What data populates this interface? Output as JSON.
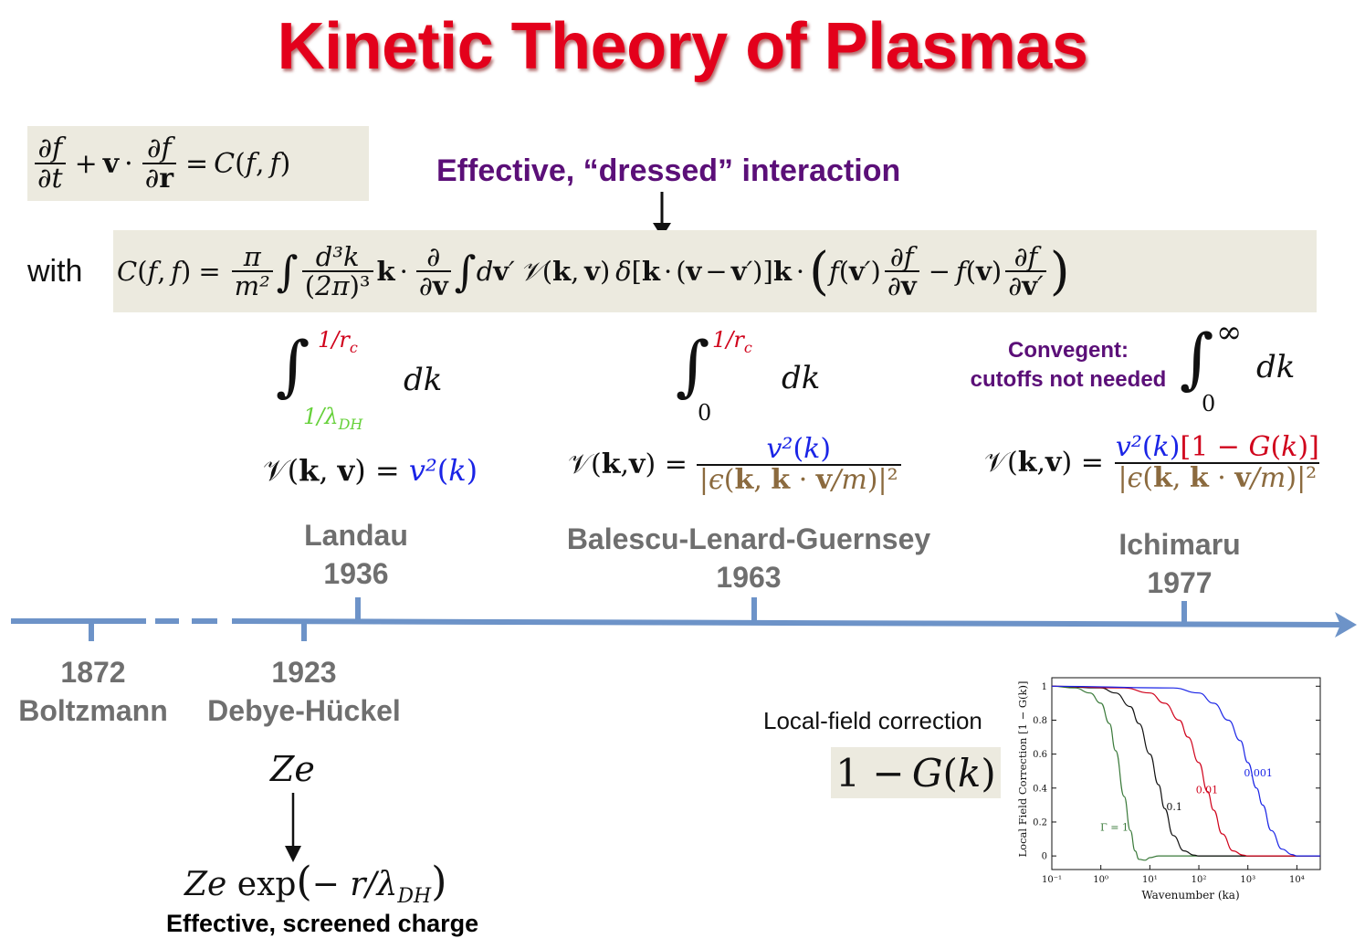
{
  "title": "Kinetic Theory of Plasmas",
  "annotations": {
    "dressed_interaction": "Effective, “dressed” interaction",
    "with_label": "with",
    "convergent_line1": "Convegent:",
    "convergent_line2": "cutoffs not needed",
    "local_field": "Local-field correction",
    "screened_charge": "Effective, screened charge"
  },
  "timeline": {
    "events": [
      {
        "year": "1872",
        "name": "Boltzmann"
      },
      {
        "year": "1923",
        "name": "Debye-Hückel"
      },
      {
        "year": "1936",
        "name": "Landau"
      },
      {
        "year": "1963",
        "name": "Balescu-Lenard-Guernsey"
      },
      {
        "year": "1977",
        "name": "Ichimaru"
      }
    ]
  },
  "colors": {
    "title": "#e3001b",
    "timeline": "#6d93c8",
    "label_gray": "#6f6f6f",
    "annotation_purple": "#5b0f78",
    "formula_box": "#eceadf",
    "cutoff_red": "#d0021b",
    "screening_green": "#66d13a",
    "potential_blue": "#1a24e6",
    "dielectric_brown": "#8b6a3e"
  },
  "chart_data": {
    "type": "line",
    "xlabel": "Wavenumber (ka)",
    "ylabel": "Local Field Correction [1 − G(k)]",
    "x_scale": "log",
    "xlim": [
      0.1,
      30000
    ],
    "ylim": [
      -0.08,
      1.05
    ],
    "x_ticks": [
      "10⁻¹",
      "10⁰",
      "10¹",
      "10²",
      "10³",
      "10⁴"
    ],
    "y_ticks": [
      "0",
      "0.2",
      "0.4",
      "0.6",
      "0.8",
      "1"
    ],
    "series": [
      {
        "name": "Γ = 1",
        "color": "#3a7a3a",
        "x": [
          0.1,
          0.3,
          0.6,
          1,
          1.5,
          2,
          3,
          4,
          5,
          6,
          8,
          10,
          15,
          30,
          100,
          30000
        ],
        "y": [
          1,
          0.99,
          0.96,
          0.9,
          0.78,
          0.62,
          0.35,
          0.15,
          0.03,
          -0.02,
          -0.025,
          -0.01,
          0,
          0,
          0,
          0
        ]
      },
      {
        "name": "0.1",
        "color": "#111111",
        "x": [
          0.1,
          1,
          2,
          4,
          6,
          10,
          15,
          20,
          30,
          50,
          80,
          100,
          150,
          30000
        ],
        "y": [
          1,
          0.99,
          0.96,
          0.88,
          0.78,
          0.6,
          0.42,
          0.28,
          0.12,
          0.03,
          0.005,
          0,
          0,
          0
        ]
      },
      {
        "name": "0.01",
        "color": "#d0021b",
        "x": [
          0.1,
          3,
          10,
          20,
          40,
          60,
          100,
          150,
          200,
          300,
          500,
          800,
          1000,
          2000,
          30000
        ],
        "y": [
          1,
          0.99,
          0.96,
          0.9,
          0.8,
          0.7,
          0.55,
          0.38,
          0.27,
          0.13,
          0.03,
          0.005,
          0,
          0,
          0
        ]
      },
      {
        "name": "0.001",
        "color": "#1a24e6",
        "x": [
          0.1,
          30,
          100,
          200,
          400,
          700,
          1000,
          1500,
          2000,
          3000,
          5000,
          8000,
          10000,
          20000,
          30000
        ],
        "y": [
          1,
          0.99,
          0.96,
          0.9,
          0.8,
          0.68,
          0.55,
          0.4,
          0.3,
          0.15,
          0.04,
          0.008,
          0,
          0,
          0
        ]
      }
    ]
  }
}
